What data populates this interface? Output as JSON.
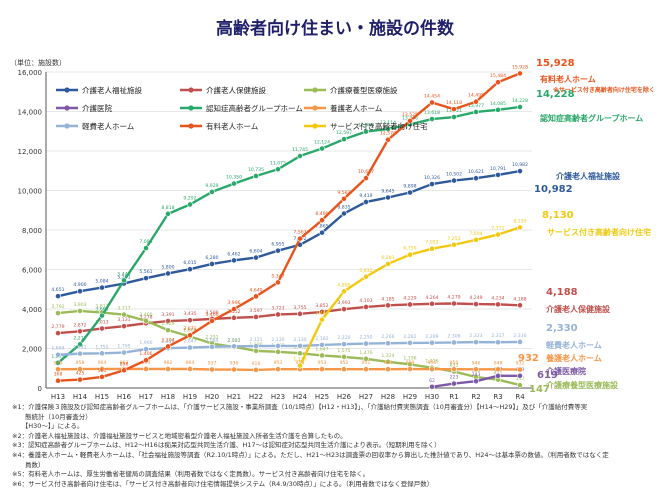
{
  "title": "高齢者向け住まい・施設の件数",
  "unit_label": "（単位：施設数）",
  "colors": {
    "roujin_fukushi": "#2e5a9c",
    "roujin_hoken": "#c0504d",
    "ryouyou": "#9bbb59",
    "iryouin": "#7e5aa6",
    "group_home": "#2aa86a",
    "yougo": "#f79646",
    "keihi": "#95b3d7",
    "yuryou": "#e8541c",
    "sakoju": "#f2c811"
  },
  "chart_data": {
    "type": "line",
    "categories": [
      "H13",
      "H14",
      "H15",
      "H16",
      "H17",
      "H18",
      "H19",
      "H20",
      "H21",
      "H22",
      "H23",
      "H24",
      "H25",
      "H26",
      "H27",
      "H28",
      "H29",
      "H30",
      "R1",
      "R2",
      "R3",
      "R4"
    ],
    "ylim": [
      0,
      16000
    ],
    "yticks": [
      "0",
      "2,000",
      "4,000",
      "6,000",
      "8,000",
      "10,000",
      "12,000",
      "14,000",
      "16,000"
    ],
    "grid": true,
    "legend_position": "top-left",
    "series": [
      {
        "key": "roujin_fukushi",
        "name": "介護老人福祉施設",
        "values": [
          4651,
          4900,
          5084,
          5291,
          5561,
          5800,
          6015,
          6280,
          6462,
          6604,
          6955,
          7252,
          7865,
          8835,
          9419,
          9645,
          9898,
          10326,
          10502,
          10621,
          10791,
          10982
        ],
        "end_label": "10,982",
        "right_label": "介護老人福祉施設"
      },
      {
        "key": "roujin_hoken",
        "name": "介護老人保健施設",
        "values": [
          2779,
          2872,
          3013,
          3131,
          3278,
          3391,
          3435,
          3500,
          3552,
          3597,
          3723,
          3755,
          3852,
          3993,
          4103,
          4185,
          4229,
          4264,
          4279,
          4249,
          4234,
          4188
        ],
        "end_label": "4,188",
        "right_label": "介護老人保健施設"
      },
      {
        "key": "ryouyou",
        "name": "介護療養型医療施設",
        "values": [
          3792,
          3903,
          3817,
          3717,
          3400,
          2929,
          2608,
          2252,
          2082,
          1880,
          1832,
          1759,
          1647,
          1575,
          1476,
          1324,
          1196,
          1026,
          833,
          556,
          421,
          147
        ],
        "end_label": "147",
        "right_label": "介護療養型医療施設"
      },
      {
        "key": "iryouin",
        "name": "介護医院",
        "values": [
          null,
          null,
          null,
          null,
          null,
          null,
          null,
          null,
          null,
          null,
          null,
          null,
          null,
          null,
          null,
          null,
          null,
          62,
          223,
          343,
          617,
          619
        ],
        "end_label": "619",
        "right_label": "介護医療院"
      },
      {
        "key": "group_home",
        "name": "認知症高齢者グループホーム",
        "values": [
          1273,
          2210,
          3665,
          5449,
          7084,
          8818,
          9292,
          9929,
          10350,
          10735,
          11075,
          11745,
          12124,
          12597,
          12983,
          13114,
          13346,
          13618,
          13721,
          13977,
          14085,
          14228
        ],
        "end_label": "14,228",
        "right_label": "認知症高齢者グループホーム"
      },
      {
        "key": "yougo",
        "name": "養護老人ホーム",
        "values": [
          949,
          958,
          964,
          962,
          964,
          962,
          964,
          937,
          936,
          916,
          953,
          953,
          953,
          952,
          951,
          953,
          959,
          955,
          950,
          946,
          948,
          932
        ],
        "end_label": "932",
        "right_label": "養護老人ホーム"
      },
      {
        "key": "keihi",
        "name": "軽費老人ホーム",
        "values": [
          1684,
          1741,
          1755,
          1795,
          1966,
          2016,
          2047,
          2084,
          2111,
          2121,
          2130,
          2130,
          2182,
          2220,
          2250,
          2266,
          2282,
          2289,
          2306,
          2323,
          2317,
          2330
        ],
        "end_label": "2,330",
        "right_label": "軽費老人ホーム"
      },
      {
        "key": "yuryou",
        "name": "有料老人ホーム",
        "values": [
          368,
          425,
          561,
          898,
          1406,
          2104,
          2671,
          3400,
          3996,
          4640,
          5347,
          7563,
          8499,
          9581,
          10627,
          12570,
          13525,
          14454,
          14118,
          14495,
          15484,
          15928
        ],
        "end_label": "15,928",
        "right_label": "有料老人ホーム",
        "right_sublabel": "※サービス付き高齢者向け住宅を除く"
      },
      {
        "key": "sakoju",
        "name": "サービス付き高齢者向け住宅",
        "values": [
          null,
          null,
          null,
          null,
          null,
          null,
          null,
          null,
          null,
          null,
          null,
          1136,
          3460,
          4895,
          5632,
          6281,
          6750,
          7053,
          7253,
          7504,
          7771,
          8130
        ],
        "end_label": "8,130",
        "right_label": "サービス付き高齢者向け住宅"
      }
    ]
  },
  "notes": [
    "※1：介護保険３施設及び認知症高齢者グループホームは、「介護サービス施設・事業所調査（10/1時点）【H12・H13】」、「介護給付費実態調査（10月審査分）【H14〜H29】」及び「介護給付費等実",
    "　　態統計（10月審査分）",
    "　　【H30〜】」による。",
    "※2：介護老人福祉施設は、介護福祉施設サービスと地域密着型介護老人福祉施設入所者生活介護を合算したもの。",
    "※3：認知症高齢者グループホームは、H12〜H16は痴呆対応型共同生活介護、H17〜は認知症対応型共同生活介護により表示。（短期利用を除く）",
    "※4：養護老人ホーム・軽費老人ホームは、「社会福祉施設等調査（R2.10/1時点）」による。ただし、H21〜H23は調査票の回収率から算出した推計値であり、H24〜は基本票の数値。（利用者数ではなく定",
    "　　員数）",
    "※5：有料老人ホームは、厚生労働省老健局の調査結果（利用者数ではなく定員数）。サービス付き高齢者向け住宅を除く。",
    "※6：サービス付き高齢者向け住宅は、「サービス付き高齢者向け住宅情報提供システム（R4.9/30時点）」による。（利用者数ではなく登録戸数）"
  ]
}
